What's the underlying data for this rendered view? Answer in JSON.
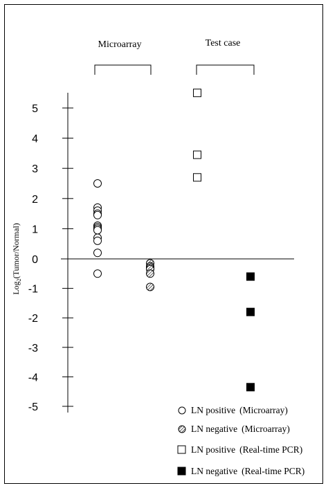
{
  "chart_data": {
    "type": "scatter",
    "ylabel_main": "Log",
    "ylabel_sub": "2",
    "ylabel_rest": "(Tumor/Normal)",
    "ylim": [
      -5,
      5
    ],
    "y_ticks": [
      "5",
      "4",
      "3",
      "2",
      "1",
      "0",
      "-1",
      "-2",
      "-3",
      "-4",
      "-5"
    ],
    "groups": [
      {
        "label": "Microarray"
      },
      {
        "label": "Test case"
      }
    ],
    "series": [
      {
        "name": "LN positive (Microarray)",
        "legend_main": "LN positive",
        "legend_sub": "(Microarray)",
        "marker": "circle-open",
        "values": [
          2.5,
          1.7,
          1.6,
          1.5,
          1.45,
          1.1,
          1.05,
          1.0,
          0.95,
          0.7,
          0.6,
          0.2,
          -0.5
        ]
      },
      {
        "name": "LN negative (Microarray)",
        "legend_main": "LN negative",
        "legend_sub": "(Microarray)",
        "marker": "circle-hatched",
        "values": [
          -0.15,
          -0.25,
          -0.3,
          -0.35,
          -0.5,
          -0.95
        ]
      },
      {
        "name": "LN positive (Real-time PCR)",
        "legend_main": "LN positive",
        "legend_sub": "(Real-time PCR)",
        "marker": "square-open",
        "values": [
          5.5,
          3.45,
          2.7
        ]
      },
      {
        "name": "LN negative (Real-time PCR)",
        "legend_main": "LN negative",
        "legend_sub": "(Real-time PCR)",
        "marker": "square-filled",
        "values": [
          -0.6,
          -1.8,
          -4.35
        ]
      }
    ]
  }
}
